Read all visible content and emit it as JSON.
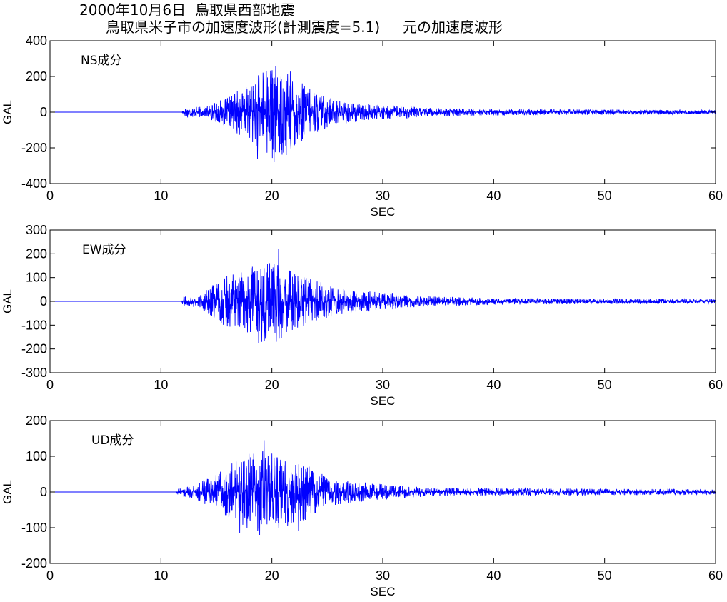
{
  "title": {
    "line1": "2000年10月6日  鳥取県西部地震",
    "line2": "鳥取県米子市の加速度波形(計測震度=5.1)     元の加速度波形"
  },
  "colors": {
    "trace": "#0000ff",
    "axes": "#000000",
    "background": "#ffffff"
  },
  "chart_data": [
    {
      "type": "line",
      "component_label": "NS成分",
      "xlabel": "SEC",
      "ylabel": "GAL",
      "xlim": [
        0,
        60
      ],
      "ylim": [
        -400,
        400
      ],
      "xticks": [
        0,
        10,
        20,
        30,
        40,
        50,
        60
      ],
      "yticks": [
        400,
        200,
        0,
        -200,
        -400
      ],
      "grid": false,
      "series": [
        {
          "onset_sec": 11.9,
          "duration_sec": 60,
          "envelope": [
            [
              11.9,
              0
            ],
            [
              12,
              30
            ],
            [
              14,
              30
            ],
            [
              15,
              60
            ],
            [
              16,
              80
            ],
            [
              17,
              130
            ],
            [
              18,
              150
            ],
            [
              19,
              230
            ],
            [
              20,
              270
            ],
            [
              21,
              250
            ],
            [
              22,
              220
            ],
            [
              23,
              150
            ],
            [
              24,
              120
            ],
            [
              25,
              90
            ],
            [
              26,
              70
            ],
            [
              28,
              50
            ],
            [
              30,
              40
            ],
            [
              32,
              35
            ],
            [
              34,
              25
            ],
            [
              38,
              20
            ],
            [
              45,
              16
            ],
            [
              60,
              12
            ]
          ],
          "peaks": [
            {
              "x": 19.5,
              "y": 230
            },
            {
              "x": 20.2,
              "y": -280
            },
            {
              "x": 18.7,
              "y": -260
            },
            {
              "x": 21.3,
              "y": -240
            }
          ]
        }
      ]
    },
    {
      "type": "line",
      "component_label": "EW成分",
      "xlabel": "SEC",
      "ylabel": "GAL",
      "xlim": [
        0,
        60
      ],
      "ylim": [
        -300,
        300
      ],
      "xticks": [
        0,
        10,
        20,
        30,
        40,
        50,
        60
      ],
      "yticks": [
        300,
        200,
        100,
        0,
        -100,
        -200,
        -300
      ],
      "grid": false,
      "series": [
        {
          "onset_sec": 11.8,
          "duration_sec": 60,
          "envelope": [
            [
              11.8,
              0
            ],
            [
              12,
              20
            ],
            [
              13,
              25
            ],
            [
              14,
              45
            ],
            [
              15,
              80
            ],
            [
              16,
              110
            ],
            [
              17,
              120
            ],
            [
              18,
              140
            ],
            [
              19,
              170
            ],
            [
              20,
              180
            ],
            [
              21,
              150
            ],
            [
              22,
              120
            ],
            [
              23,
              100
            ],
            [
              24,
              90
            ],
            [
              25,
              75
            ],
            [
              26,
              60
            ],
            [
              28,
              45
            ],
            [
              30,
              40
            ],
            [
              32,
              30
            ],
            [
              34,
              22
            ],
            [
              38,
              16
            ],
            [
              45,
              12
            ],
            [
              60,
              10
            ]
          ],
          "peaks": [
            {
              "x": 20.6,
              "y": 220
            },
            {
              "x": 18.8,
              "y": -175
            },
            {
              "x": 20.4,
              "y": -170
            },
            {
              "x": 19.3,
              "y": 140
            }
          ]
        }
      ]
    },
    {
      "type": "line",
      "component_label": "UD成分",
      "xlabel": "SEC",
      "ylabel": "GAL",
      "xlim": [
        0,
        60
      ],
      "ylim": [
        -200,
        200
      ],
      "xticks": [
        0,
        10,
        20,
        30,
        40,
        50,
        60
      ],
      "yticks": [
        200,
        100,
        0,
        -100,
        -200
      ],
      "grid": false,
      "series": [
        {
          "onset_sec": 11.3,
          "duration_sec": 60,
          "envelope": [
            [
              11.3,
              0
            ],
            [
              11.5,
              10
            ],
            [
              13,
              20
            ],
            [
              14,
              35
            ],
            [
              15,
              50
            ],
            [
              16,
              70
            ],
            [
              17,
              95
            ],
            [
              18,
              110
            ],
            [
              19,
              120
            ],
            [
              20,
              110
            ],
            [
              21,
              100
            ],
            [
              22,
              95
            ],
            [
              23,
              80
            ],
            [
              24,
              60
            ],
            [
              25,
              45
            ],
            [
              26,
              35
            ],
            [
              28,
              28
            ],
            [
              30,
              22
            ],
            [
              32,
              16
            ],
            [
              35,
              12
            ],
            [
              45,
              10
            ],
            [
              60,
              8
            ]
          ],
          "peaks": [
            {
              "x": 19.3,
              "y": 145
            },
            {
              "x": 18.9,
              "y": -120
            },
            {
              "x": 17.1,
              "y": -115
            },
            {
              "x": 22.4,
              "y": -110
            }
          ]
        }
      ]
    }
  ]
}
